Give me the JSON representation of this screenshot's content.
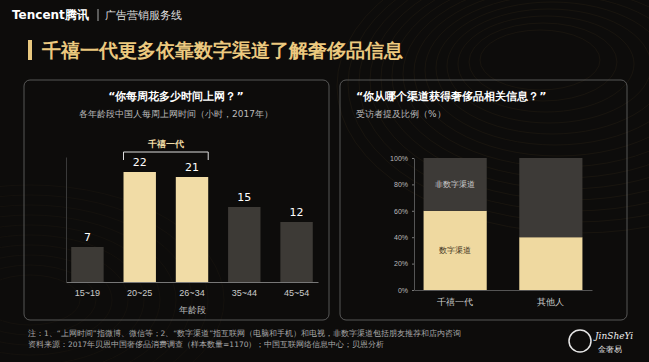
{
  "header": {
    "brand": "Tencent腾讯",
    "unit": "广告营销服务线"
  },
  "title": "千禧一代更多依靠数字渠道了解奢侈品信息",
  "notes": [
    "注：1、“上网时间”指微博、微信等；2、“数字渠道”指互联网（电脑和手机）和电视，非数字渠道包括朋友推荐和店内咨询",
    "资料来源：2017年贝恩中国奢侈品消费调查（样本数量=1170）；中国互联网络信息中心；贝恩分析"
  ],
  "watermark": [
    "JinSheYi",
    "金奢易"
  ],
  "chart_data": [
    {
      "type": "bar",
      "title": "“你每周花多少时间上网？”",
      "subtitle": "各年龄段中国人每周上网时间（小时，2017年）",
      "x_label": "年龄段",
      "categories": [
        "15~19",
        "20~25",
        "26~34",
        "35~44",
        "45~54"
      ],
      "values": [
        7,
        22,
        21,
        15,
        12
      ],
      "colors": [
        "#3d3a36",
        "#f1dca6",
        "#f1dca6",
        "#3d3a36",
        "#3d3a36"
      ],
      "ylim": [
        0,
        25
      ],
      "data_labels": true,
      "tick_labels": "x",
      "annotations": [
        {
          "text": "千禧一代",
          "from": "20~25",
          "to": "26~34"
        }
      ]
    },
    {
      "type": "bar",
      "title": "“你从哪个渠道获得奢侈品相关信息？”",
      "subtitle": "受访者提及比例（%）",
      "categories": [
        "千禧一代",
        "其他人"
      ],
      "series": [
        {
          "name": "数字渠道",
          "color": "#efd9a0",
          "values": [
            60,
            40
          ]
        },
        {
          "name": "非数字渠道",
          "color": "#3d3a37",
          "values": [
            40,
            60
          ]
        }
      ],
      "stacked": true,
      "ylim": [
        0,
        100
      ],
      "yticks": [
        {
          "value": 0,
          "label": "0%"
        },
        {
          "value": 20,
          "label": "20%"
        },
        {
          "value": 40,
          "label": "40%"
        },
        {
          "value": 60,
          "label": "60%"
        },
        {
          "value": 80,
          "label": "80%"
        },
        {
          "value": 100,
          "label": "100%"
        }
      ]
    }
  ]
}
